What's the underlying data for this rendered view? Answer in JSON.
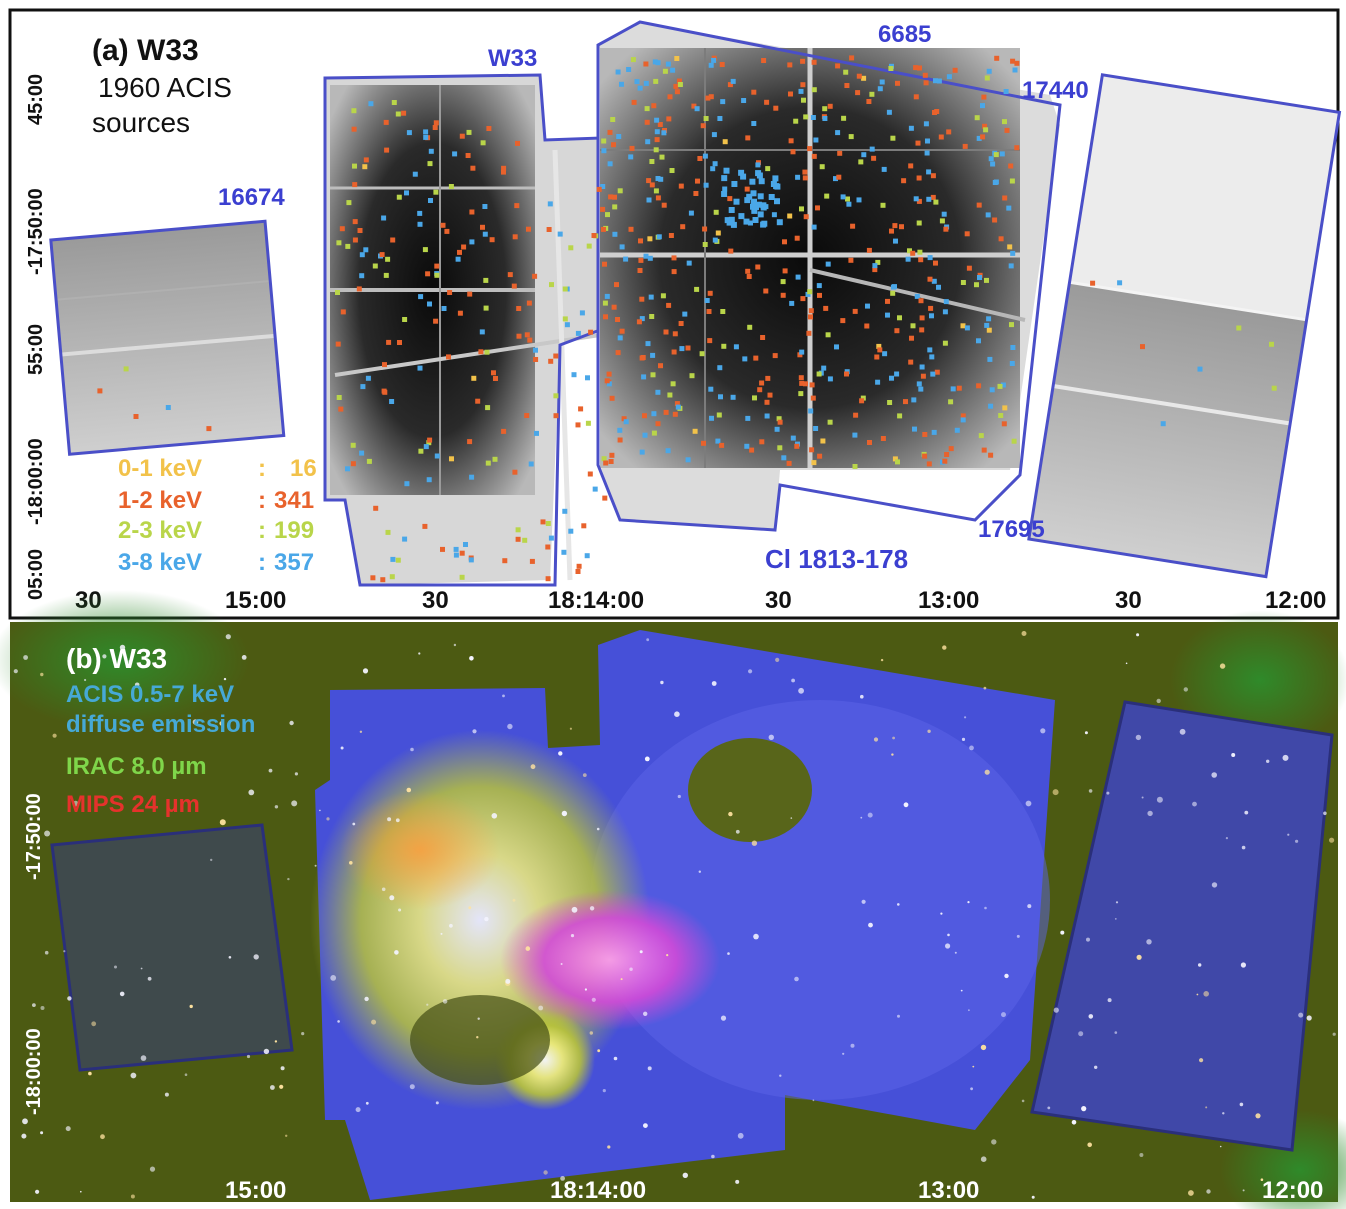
{
  "panel_a": {
    "title": "(a) W33",
    "subtitle_line1": "1960 ACIS",
    "subtitle_line2": "sources",
    "field_labels": [
      "W33",
      "6685",
      "17440",
      "16674",
      "17695",
      "Cl 1813-178"
    ],
    "legend": [
      {
        "band": "0-1 keV",
        "count": "16",
        "color": "#f2c24a"
      },
      {
        "band": "1-2 keV",
        "count": "341",
        "color": "#e8622c"
      },
      {
        "band": "2-3 keV",
        "count": "199",
        "color": "#b9d54a"
      },
      {
        "band": "3-8 keV",
        "count": "357",
        "color": "#4aa7e8"
      }
    ],
    "x_ticks": [
      "30",
      "15:00",
      "30",
      "18:14:00",
      "30",
      "13:00",
      "30",
      "12:00"
    ],
    "y_ticks": [
      "45:00",
      "-17:50:00",
      "55:00",
      "-18:00:00",
      "05:00"
    ]
  },
  "panel_b": {
    "title": "(b) W33",
    "legend": [
      {
        "text": "ACIS 0.5-7 keV",
        "color": "#46a9d6"
      },
      {
        "text": "diffuse emission",
        "color": "#46a9d6"
      },
      {
        "text": "IRAC 8.0 µm",
        "color": "#7fd64a"
      },
      {
        "text": "MIPS 24 µm",
        "color": "#e5322c"
      }
    ],
    "x_ticks": [
      "15:00",
      "18:14:00",
      "13:00",
      "12:00"
    ],
    "y_ticks": [
      "-17:50:00",
      "-18:00:00"
    ]
  },
  "colors": {
    "outline": "#4a4fc8",
    "field_label": "#3b3fd0",
    "panel_b_bg": "#4c5a12",
    "xray_blue": "#4a5ae8"
  }
}
